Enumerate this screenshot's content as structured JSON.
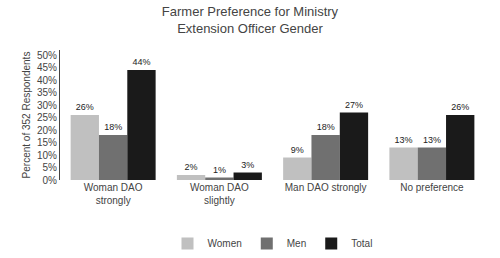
{
  "chart_data": {
    "type": "bar",
    "title": "Farmer Preference for Ministry\nExtension Officer Gender",
    "ylabel": "Percent of 352 Respondents",
    "categories": [
      "Woman DAO\nstrongly",
      "Woman DAO\nslightly",
      "Man DAO strongly",
      "No preference"
    ],
    "series": [
      {
        "name": "Women",
        "color": "#c0c0c0",
        "values": [
          26,
          2,
          9,
          13
        ],
        "value_labels": [
          "26%",
          "2%",
          "9%",
          "13%"
        ]
      },
      {
        "name": "Men",
        "color": "#707070",
        "values": [
          18,
          1,
          18,
          13
        ],
        "value_labels": [
          "18%",
          "1%",
          "18%",
          "13%"
        ]
      },
      {
        "name": "Total",
        "color": "#1a1a1a",
        "values": [
          44,
          3,
          27,
          26
        ],
        "value_labels": [
          "44%",
          "3%",
          "27%",
          "26%"
        ]
      }
    ],
    "ylim": [
      0,
      52
    ],
    "yticks": [
      {
        "value": 0,
        "label": "0%"
      },
      {
        "value": 5,
        "label": "5%"
      },
      {
        "value": 10,
        "label": "10%"
      },
      {
        "value": 15,
        "label": "15%"
      },
      {
        "value": 20,
        "label": "20%"
      },
      {
        "value": 25,
        "label": "25%"
      },
      {
        "value": 30,
        "label": "30%"
      },
      {
        "value": 35,
        "label": "35%"
      },
      {
        "value": 40,
        "label": "40%"
      },
      {
        "value": 45,
        "label": "45%"
      },
      {
        "value": 50,
        "label": "50%"
      }
    ],
    "data_labels": true,
    "grid": false,
    "legend": "bottom"
  }
}
